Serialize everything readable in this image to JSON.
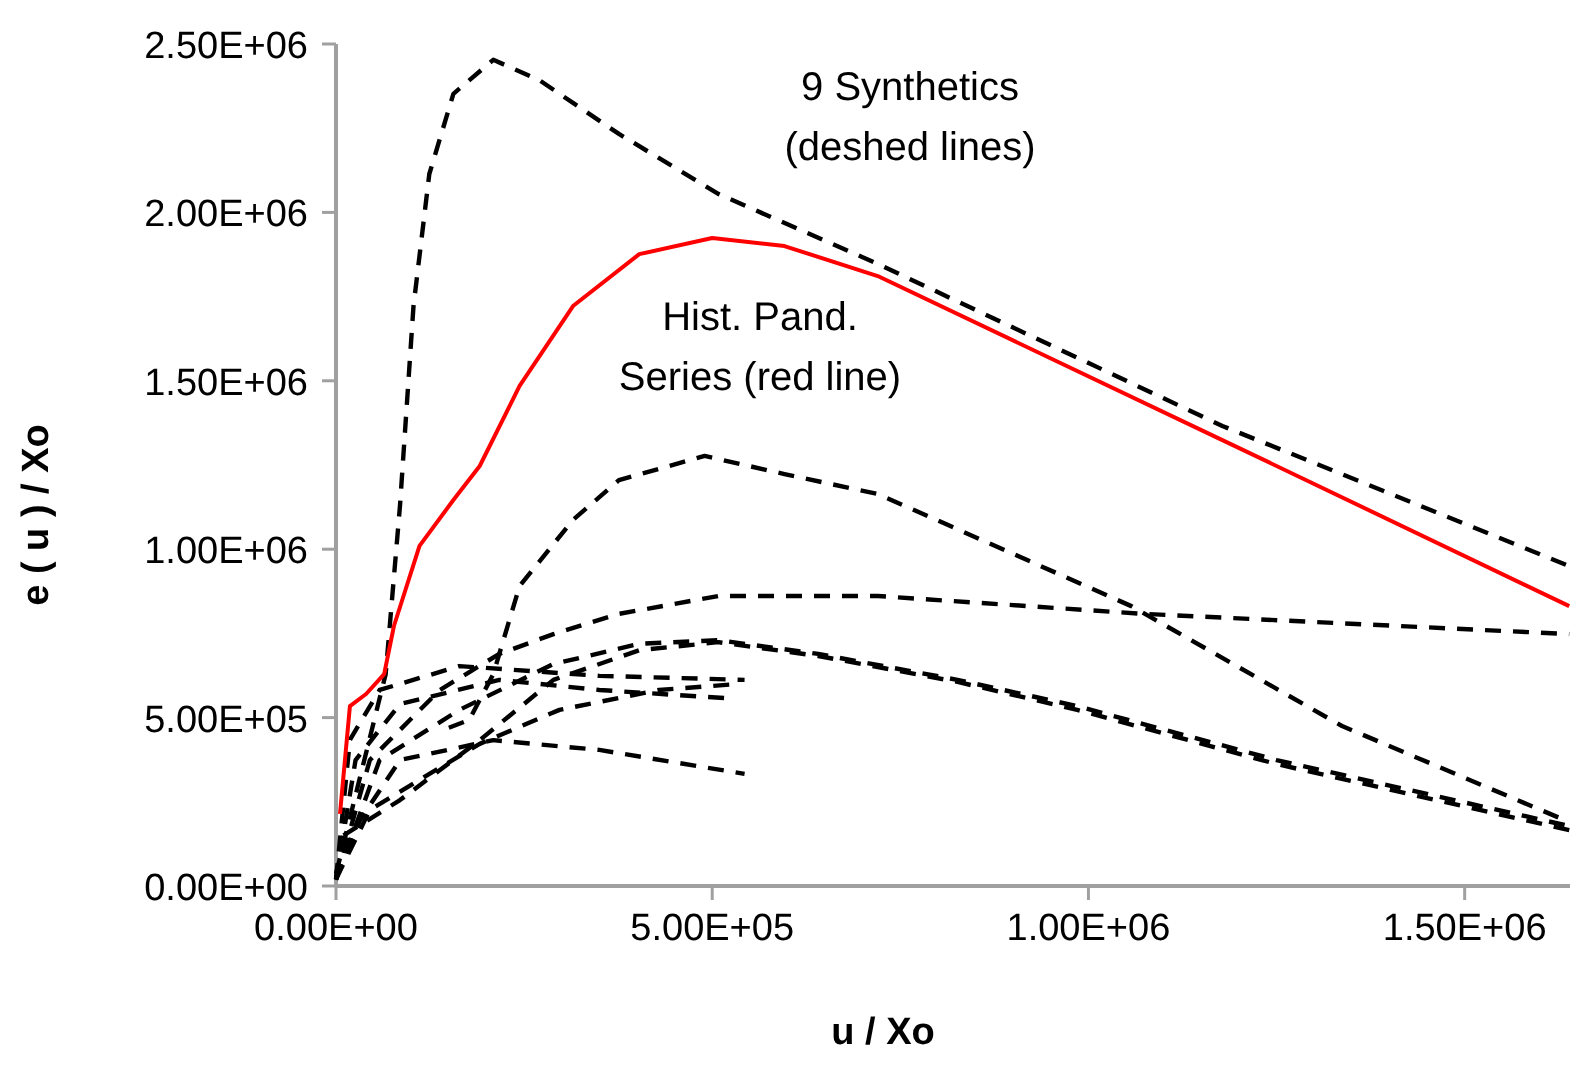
{
  "chart_data": {
    "type": "line",
    "xlabel": "u / Xo",
    "ylabel": "e ( u ) / Xo",
    "xlim": [
      0,
      1640000
    ],
    "xticks": [
      {
        "value": 0,
        "label": "0.00E+00"
      },
      {
        "value": 500000,
        "label": "5.00E+05"
      },
      {
        "value": 1000000,
        "label": "1.00E+06"
      },
      {
        "value": 1500000,
        "label": "1.50E+06"
      }
    ],
    "ylim": [
      0,
      2500000
    ],
    "yticks": [
      {
        "value": 0,
        "label": "0.00E+00"
      },
      {
        "value": 500000,
        "label": "5.00E+05"
      },
      {
        "value": 1000000,
        "label": "1.00E+06"
      },
      {
        "value": 1500000,
        "label": "1.50E+06"
      },
      {
        "value": 2000000,
        "label": "2.00E+06"
      },
      {
        "value": 2500000,
        "label": "2.50E+06"
      }
    ],
    "grid": false,
    "marker": "none",
    "annotations": [
      "9 Synthetics\n(deshed lines)",
      "Hist. Pand.\nSeries (red line)"
    ],
    "series": [
      {
        "color": "#000000",
        "line_style": "dashed",
        "x": [
          0,
          66000,
          85000,
          103000,
          124000,
          156000,
          209000,
          270000,
          376000,
          508000,
          720000,
          1178000,
          1639000
        ],
        "values": [
          36000,
          629000,
          1128000,
          1722000,
          2114000,
          2352000,
          2453000,
          2393000,
          2233000,
          2055000,
          1847000,
          1366000,
          950000
        ]
      },
      {
        "color": "#000000",
        "line_style": "dashed",
        "x": [
          150000,
          177000,
          209000,
          244000,
          315000,
          376000,
          490000,
          596000,
          720000,
          1057000,
          1337000,
          1639000
        ],
        "values": [
          470000,
          493000,
          629000,
          891000,
          1087000,
          1205000,
          1277000,
          1223000,
          1164000,
          831000,
          475000,
          190000
        ]
      },
      {
        "color": "#000000",
        "line_style": "dashed",
        "x": [
          0,
          45000,
          138000,
          217000,
          289000,
          376000,
          508000,
          720000,
          1073000,
          1639000
        ],
        "values": [
          18000,
          374000,
          582000,
          689000,
          748000,
          808000,
          861000,
          861000,
          808000,
          748000
        ]
      },
      {
        "color": "#000000",
        "line_style": "dashed",
        "x": [
          0,
          58000,
          164000,
          289000,
          403000,
          508000,
          641000,
          826000,
          985000,
          1250000,
          1639000
        ],
        "values": [
          20000,
          374000,
          523000,
          659000,
          719000,
          730000,
          689000,
          612000,
          534000,
          374000,
          178000
        ]
      },
      {
        "color": "#000000",
        "line_style": "dashed",
        "x": [
          10000,
          85000,
          191000,
          289000,
          403000,
          508000,
          641000,
          826000,
          985000,
          1250000,
          1639000
        ],
        "values": [
          150000,
          255000,
          433000,
          612000,
          700000,
          724000,
          683000,
          606000,
          523000,
          362000,
          166000
        ]
      },
      {
        "color": "#000000",
        "line_style": "dashed",
        "x": [
          0,
          18500,
          58000,
          164000,
          350000,
          543000
        ],
        "values": [
          20000,
          434000,
          582000,
          653000,
          624000,
          612000
        ]
      },
      {
        "color": "#000000",
        "line_style": "dashed",
        "x": [
          0,
          26000,
          85000,
          217000,
          350000,
          516000
        ],
        "values": [
          20000,
          374000,
          540000,
          612000,
          582000,
          558000
        ]
      },
      {
        "color": "#000000",
        "line_style": "dashed",
        "x": [
          0,
          45000,
          111000,
          191000,
          297000,
          429000,
          535000
        ],
        "values": [
          20000,
          226000,
          315000,
          422000,
          523000,
          582000,
          600000
        ]
      },
      {
        "color": "#000000",
        "line_style": "dashed",
        "x": [
          0,
          32000,
          85000,
          209000,
          350000,
          543000
        ],
        "values": [
          20000,
          196000,
          374000,
          433000,
          404000,
          333000
        ]
      },
      {
        "color": "#ff0000",
        "line_style": "solid",
        "x": [
          5300,
          18500,
          40000,
          64000,
          77000,
          111000,
          156000,
          191000,
          244000,
          315000,
          403000,
          500000,
          596000,
          720000,
          1178000,
          1639000
        ],
        "values": [
          214000,
          534000,
          570000,
          629000,
          772000,
          1010000,
          1146000,
          1247000,
          1485000,
          1722000,
          1876000,
          1924000,
          1900000,
          1811000,
          1324000,
          831000
        ]
      }
    ]
  }
}
